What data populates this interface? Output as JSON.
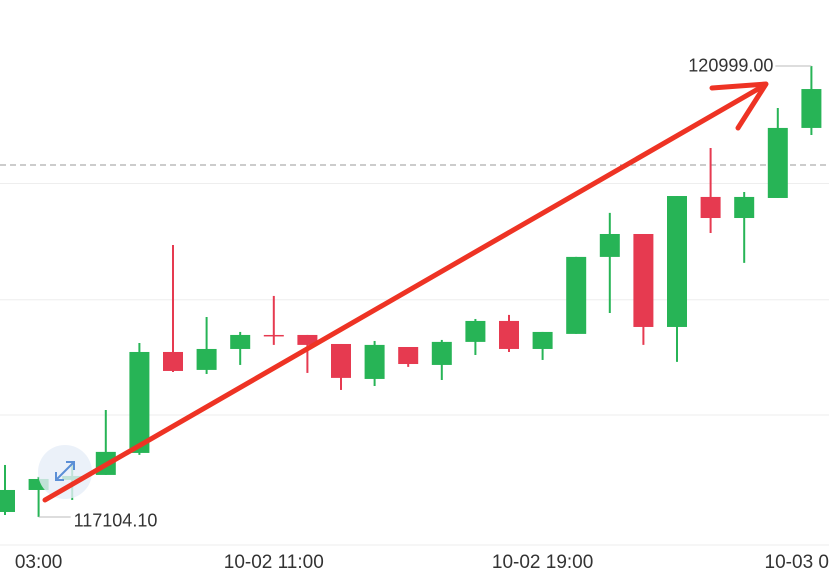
{
  "chart_data": {
    "type": "candlestick",
    "categories": [
      null,
      "03:00",
      null,
      null,
      null,
      null,
      null,
      null,
      "10-02 11:00",
      null,
      null,
      null,
      null,
      null,
      null,
      null,
      "10-02 19:00",
      null,
      null,
      null,
      null,
      null,
      null,
      null,
      "10-03 0"
    ],
    "open": [
      117147,
      117337,
      117424,
      117467,
      117657,
      118529,
      118374,
      118555,
      118676,
      118676,
      118598,
      118296,
      118572,
      118417,
      118616,
      118797,
      118555,
      118685,
      119350,
      119548,
      118745,
      119868,
      119686,
      119859,
      120464
    ],
    "high": [
      117553,
      117450,
      117579,
      118028,
      118607,
      119453,
      118831,
      118702,
      119013,
      118676,
      118598,
      118624,
      118572,
      118633,
      118814,
      118849,
      118702,
      119350,
      119730,
      119548,
      119876,
      120291,
      119911,
      120636,
      120999
    ],
    "low": [
      117121,
      117104.1,
      117251,
      117467,
      117640,
      118356,
      118339,
      118417,
      118590,
      118348,
      118201,
      118235,
      118400,
      118287,
      118503,
      118529,
      118460,
      118685,
      118866,
      118590,
      118443,
      119557,
      119298,
      119859,
      120403
    ],
    "close": [
      117337,
      117432,
      117458,
      117666,
      118529,
      118365,
      118555,
      118676,
      118667,
      118590,
      118305,
      118590,
      118425,
      118616,
      118797,
      118555,
      118702,
      119350,
      119548,
      118745,
      119876,
      119686,
      119868,
      120464,
      120800
    ],
    "up_color": "#27b456",
    "down_color": "#e63a50",
    "ylim": [
      116905,
      121569
    ],
    "gridlines": [
      119984,
      118980,
      117985
    ],
    "reference_line": 120144,
    "high_label": "120999.00",
    "low_label": "117104.10"
  }
}
